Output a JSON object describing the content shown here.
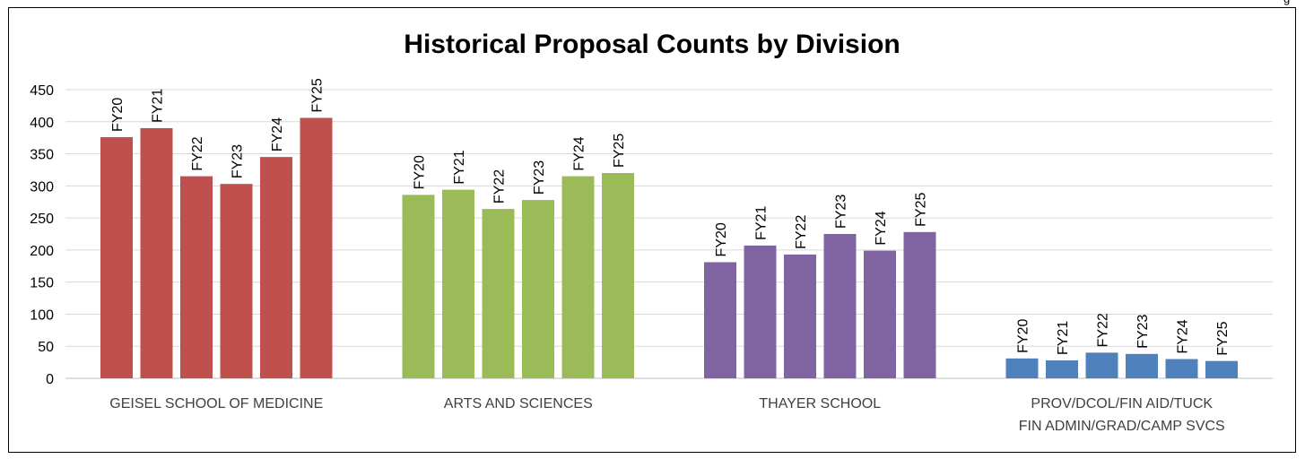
{
  "corner_text": "g",
  "chart_data": {
    "type": "bar",
    "title": "Historical Proposal Counts by Division",
    "xlabel": "",
    "ylabel": "",
    "ylim": [
      0,
      450
    ],
    "yticks": [
      0,
      50,
      100,
      150,
      200,
      250,
      300,
      350,
      400,
      450
    ],
    "grid": true,
    "legend": "none",
    "categories": [
      "GEISEL SCHOOL OF MEDICINE",
      "ARTS AND SCIENCES",
      "THAYER SCHOOL",
      "PROV/DCOL/FIN AID/TUCK FIN ADMIN/GRAD/CAMP SVCS"
    ],
    "category_lines": [
      [
        "GEISEL SCHOOL OF MEDICINE"
      ],
      [
        "ARTS AND SCIENCES"
      ],
      [
        "THAYER SCHOOL"
      ],
      [
        "PROV/DCOL/FIN AID/TUCK",
        "FIN ADMIN/GRAD/CAMP SVCS"
      ]
    ],
    "bar_labels": [
      "FY20",
      "FY21",
      "FY22",
      "FY23",
      "FY24",
      "FY25"
    ],
    "colors": [
      "#c0504d",
      "#9bbb59",
      "#8064a2",
      "#4f81bd"
    ],
    "values": [
      [
        376,
        390,
        315,
        303,
        345,
        406
      ],
      [
        286,
        294,
        264,
        278,
        315,
        320
      ],
      [
        181,
        207,
        193,
        225,
        199,
        228
      ],
      [
        31,
        28,
        40,
        38,
        30,
        27
      ]
    ]
  }
}
